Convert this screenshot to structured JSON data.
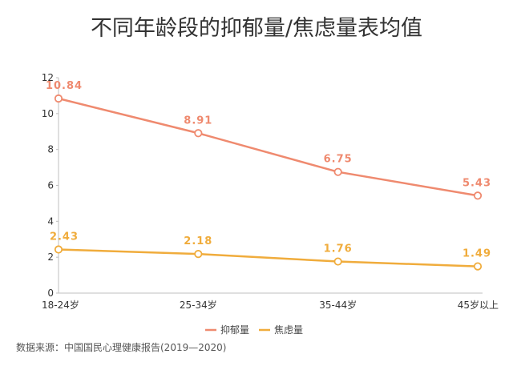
{
  "chart_data": {
    "type": "line",
    "title": "不同年龄段的抑郁量/焦虑量表均值",
    "categories": [
      "18-24岁",
      "25-34岁",
      "35-44岁",
      "45岁以上"
    ],
    "ylim": [
      0,
      12
    ],
    "yticks": [
      0,
      2,
      4,
      6,
      8,
      10,
      12
    ],
    "grid": false,
    "legend_position": "bottom-center",
    "series": [
      {
        "name": "抑郁量",
        "values": [
          10.84,
          8.91,
          6.75,
          5.43
        ],
        "color": "#ef8a6f"
      },
      {
        "name": "焦虑量",
        "values": [
          2.43,
          2.18,
          1.76,
          1.49
        ],
        "color": "#f0ac3c"
      }
    ],
    "source": "数据来源：中国国民心理健康报告(2019—2020)"
  }
}
